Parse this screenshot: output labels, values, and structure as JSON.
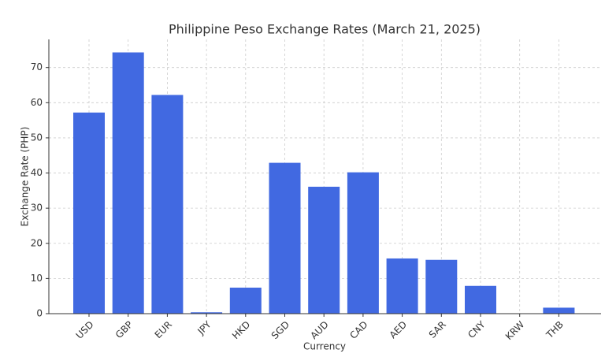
{
  "chart_data": {
    "type": "bar",
    "title": "Philippine Peso Exchange Rates (March 21, 2025)",
    "x_label": "Currency",
    "y_label": "Exchange Rate (PHP)",
    "categories": [
      "USD",
      "GBP",
      "EUR",
      "JPY",
      "HKD",
      "SGD",
      "AUD",
      "CAD",
      "AED",
      "SAR",
      "CNY",
      "KRW",
      "THB"
    ],
    "values": [
      57.2,
      74.3,
      62.2,
      0.39,
      7.4,
      42.9,
      36.1,
      40.2,
      15.7,
      15.3,
      7.9,
      0.04,
      1.7
    ],
    "color": "#4169e1",
    "ylim": [
      0,
      78
    ],
    "yticks": [
      0,
      10,
      20,
      30,
      40,
      50,
      60,
      70
    ],
    "grid": true
  }
}
